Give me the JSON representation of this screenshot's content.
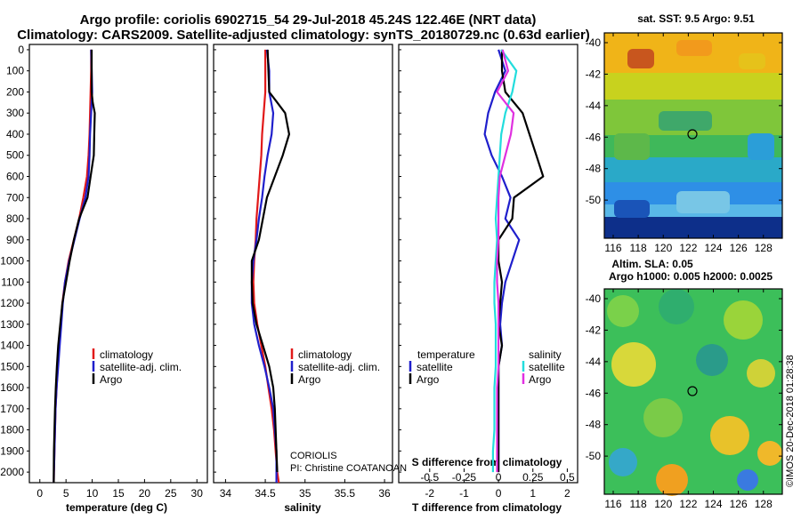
{
  "header": {
    "title_line1": "Argo profile: coriolis 6902715_54 29-Jul-2018 45.24S 122.46E (NRT data)",
    "title_line2": "Climatology: CARS2009. Satellite-adjusted climatology: synTS_20180729.nc (0.63d earlier)"
  },
  "depth_ticks": [
    "0",
    "100",
    "200",
    "300",
    "400",
    "500",
    "600",
    "700",
    "800",
    "900",
    "1000",
    "1100",
    "1200",
    "1300",
    "1400",
    "1500",
    "1600",
    "1700",
    "1800",
    "1900",
    "2000"
  ],
  "colors": {
    "climatology": "#e11919",
    "satellite": "#1f1fcc",
    "argo": "#000000",
    "sat_salinity": "#22dddd",
    "argo_salinity": "#e030e0"
  },
  "legend": {
    "climatology": "climatology",
    "satellite": "satellite-adj. clim.",
    "argo": "Argo"
  },
  "diff_legend": {
    "temperature": "temperature",
    "salinity": "salinity",
    "satellite": "satellite",
    "argo": "Argo"
  },
  "credits": {
    "institution": "CORIOLIS",
    "pi": "PI: Christine COATANOAN",
    "stamp": "©IMOS 20-Dec-2018 01:28:38"
  },
  "maps": {
    "sst_title": "sat. SST: 9.5 Argo: 9.51",
    "sla_title1": "Altim. SLA: 0.05",
    "sla_title2": "Argo h1000: 0.005 h2000: 0.0025",
    "lat_ticks": [
      "-40",
      "-42",
      "-44",
      "-46",
      "-48",
      "-50"
    ],
    "lon_ticks": [
      "116",
      "118",
      "120",
      "122",
      "124",
      "126",
      "128"
    ]
  },
  "chart_data": [
    {
      "type": "line",
      "xlabel": "temperature (deg C)",
      "ylabel": "",
      "xlim": [
        -2,
        32
      ],
      "ylim": [
        2050,
        0
      ],
      "x_ticks": [
        "0",
        "5",
        "10",
        "15",
        "20",
        "25",
        "30"
      ],
      "series": [
        {
          "name": "climatology",
          "x": [
            9.8,
            9.8,
            9.7,
            9.6,
            9.5,
            9.3,
            9.0,
            8.3,
            7.5,
            6.5,
            5.5,
            4.8,
            4.3,
            4.0,
            3.7,
            3.4,
            3.2,
            3.0,
            2.9,
            2.8,
            2.7,
            2.65
          ],
          "y": [
            0,
            100,
            200,
            300,
            400,
            500,
            600,
            700,
            800,
            900,
            1000,
            1100,
            1200,
            1300,
            1400,
            1500,
            1600,
            1700,
            1800,
            1900,
            2000,
            2050
          ]
        },
        {
          "name": "satellite-adj. clim.",
          "x": [
            9.8,
            9.9,
            10.0,
            9.8,
            9.6,
            9.5,
            9.3,
            8.7,
            7.6,
            6.6,
            5.6,
            4.8,
            4.4,
            4.1,
            3.8,
            3.5,
            3.2,
            3.0,
            2.9,
            2.8,
            2.7,
            2.65
          ],
          "y": [
            0,
            100,
            200,
            300,
            400,
            500,
            600,
            700,
            800,
            900,
            1000,
            1100,
            1200,
            1300,
            1400,
            1500,
            1600,
            1700,
            1800,
            1900,
            2000,
            2050
          ]
        },
        {
          "name": "Argo",
          "x": [
            9.9,
            9.9,
            9.9,
            10.1,
            10.5,
            10.4,
            10.3,
            9.7,
            9.1,
            7.5,
            6.5,
            5.7,
            5.0,
            4.3,
            3.9,
            3.5,
            3.25,
            3.05,
            2.9,
            2.8,
            2.7,
            2.65,
            2.65
          ],
          "y": [
            0,
            100,
            200,
            250,
            300,
            400,
            500,
            600,
            700,
            800,
            900,
            1000,
            1100,
            1200,
            1300,
            1400,
            1500,
            1600,
            1700,
            1800,
            1900,
            2000,
            2050
          ]
        }
      ]
    },
    {
      "type": "line",
      "xlabel": "salinity",
      "ylabel": "",
      "xlim": [
        33.85,
        36.1
      ],
      "ylim": [
        2050,
        0
      ],
      "x_ticks": [
        "34",
        "34.5",
        "35",
        "35.5",
        "36"
      ],
      "series": [
        {
          "name": "climatology",
          "x": [
            34.5,
            34.5,
            34.5,
            34.48,
            34.46,
            34.45,
            34.43,
            34.41,
            34.39,
            34.38,
            34.36,
            34.35,
            34.36,
            34.4,
            34.45,
            34.5,
            34.54,
            34.58,
            34.61,
            34.63,
            34.65,
            34.67
          ],
          "y": [
            0,
            100,
            200,
            300,
            400,
            500,
            600,
            700,
            800,
            900,
            1000,
            1100,
            1200,
            1300,
            1400,
            1500,
            1600,
            1700,
            1800,
            1900,
            2000,
            2050
          ]
        },
        {
          "name": "satellite-adj. clim.",
          "x": [
            34.52,
            34.55,
            34.55,
            34.6,
            34.58,
            34.53,
            34.49,
            34.46,
            34.42,
            34.39,
            34.35,
            34.33,
            34.33,
            34.36,
            34.42,
            34.49,
            34.55,
            34.6,
            34.62,
            34.64,
            34.64,
            34.64
          ],
          "y": [
            0,
            100,
            200,
            300,
            400,
            500,
            600,
            700,
            800,
            900,
            1000,
            1100,
            1200,
            1300,
            1400,
            1500,
            1600,
            1700,
            1800,
            1900,
            2000,
            2050
          ]
        },
        {
          "name": "Argo",
          "x": [
            34.53,
            34.54,
            34.55,
            34.65,
            34.75,
            34.8,
            34.72,
            34.62,
            34.52,
            34.47,
            34.42,
            34.33,
            34.33,
            34.34,
            34.39,
            34.47,
            34.55,
            34.6,
            34.62,
            34.63,
            34.64,
            34.65
          ],
          "y": [
            0,
            100,
            200,
            250,
            300,
            400,
            500,
            600,
            700,
            800,
            900,
            1000,
            1100,
            1200,
            1300,
            1400,
            1500,
            1600,
            1700,
            1800,
            1900,
            2000
          ]
        }
      ]
    },
    {
      "type": "line",
      "xlabel": "T difference from climatology",
      "ylabel": "",
      "xlim": [
        -2.9,
        2.3
      ],
      "ylim": [
        2050,
        0
      ],
      "x_ticks": [
        "-2",
        "-1",
        "0",
        "1",
        "2"
      ],
      "top_label": "S difference from climatology",
      "top_ticks": [
        "-0.5",
        "-0.25",
        "0",
        "0.25",
        "0.5"
      ],
      "series": [
        {
          "name": "temperature satellite",
          "x": [
            0.0,
            0.2,
            -0.1,
            -0.3,
            -0.4,
            -0.2,
            0.1,
            0.35,
            0.2,
            0.6,
            0.4,
            0.2,
            0.1,
            0.05,
            0.1,
            0.0,
            0.0,
            0.0,
            0.0,
            0.0,
            0.0
          ],
          "y": [
            0,
            100,
            200,
            300,
            400,
            500,
            600,
            700,
            800,
            900,
            1000,
            1100,
            1200,
            1300,
            1400,
            1500,
            1600,
            1700,
            1800,
            1900,
            2000
          ]
        },
        {
          "name": "temperature Argo",
          "x": [
            0.1,
            0.1,
            0.2,
            0.7,
            0.9,
            1.1,
            1.3,
            0.45,
            0.4,
            0.0,
            0.0,
            0.1,
            0.05,
            0.0,
            0.1,
            0.0,
            0.0,
            0.0,
            0.0,
            0.0,
            0.0
          ],
          "y": [
            0,
            100,
            200,
            300,
            400,
            500,
            600,
            700,
            800,
            900,
            1000,
            1100,
            1200,
            1300,
            1400,
            1500,
            1600,
            1700,
            1800,
            1900,
            2000
          ]
        },
        {
          "name": "salinity satellite",
          "x": [
            0.02,
            0.13,
            0.1,
            0.05,
            0.02,
            0.01,
            0.0,
            -0.01,
            -0.02,
            -0.01,
            -0.02,
            -0.03,
            -0.03,
            -0.02,
            -0.02,
            -0.02,
            -0.03,
            -0.03,
            -0.03,
            -0.04,
            -0.04
          ],
          "y": [
            0,
            100,
            200,
            300,
            400,
            500,
            600,
            700,
            800,
            900,
            1000,
            1100,
            1200,
            1300,
            1400,
            1500,
            1600,
            1700,
            1800,
            1900,
            2000
          ]
        },
        {
          "name": "salinity Argo",
          "x": [
            0.03,
            0.07,
            -0.01,
            0.11,
            0.09,
            0.05,
            0.01,
            0.0,
            0.0,
            0.0,
            -0.01,
            -0.01,
            0.0,
            0.0,
            0.0,
            0.0,
            -0.01,
            -0.01,
            -0.01,
            -0.01,
            -0.01
          ],
          "y": [
            0,
            100,
            200,
            300,
            400,
            500,
            600,
            700,
            800,
            900,
            1000,
            1100,
            1200,
            1300,
            1400,
            1500,
            1600,
            1700,
            1800,
            1900,
            2000
          ]
        }
      ]
    }
  ]
}
